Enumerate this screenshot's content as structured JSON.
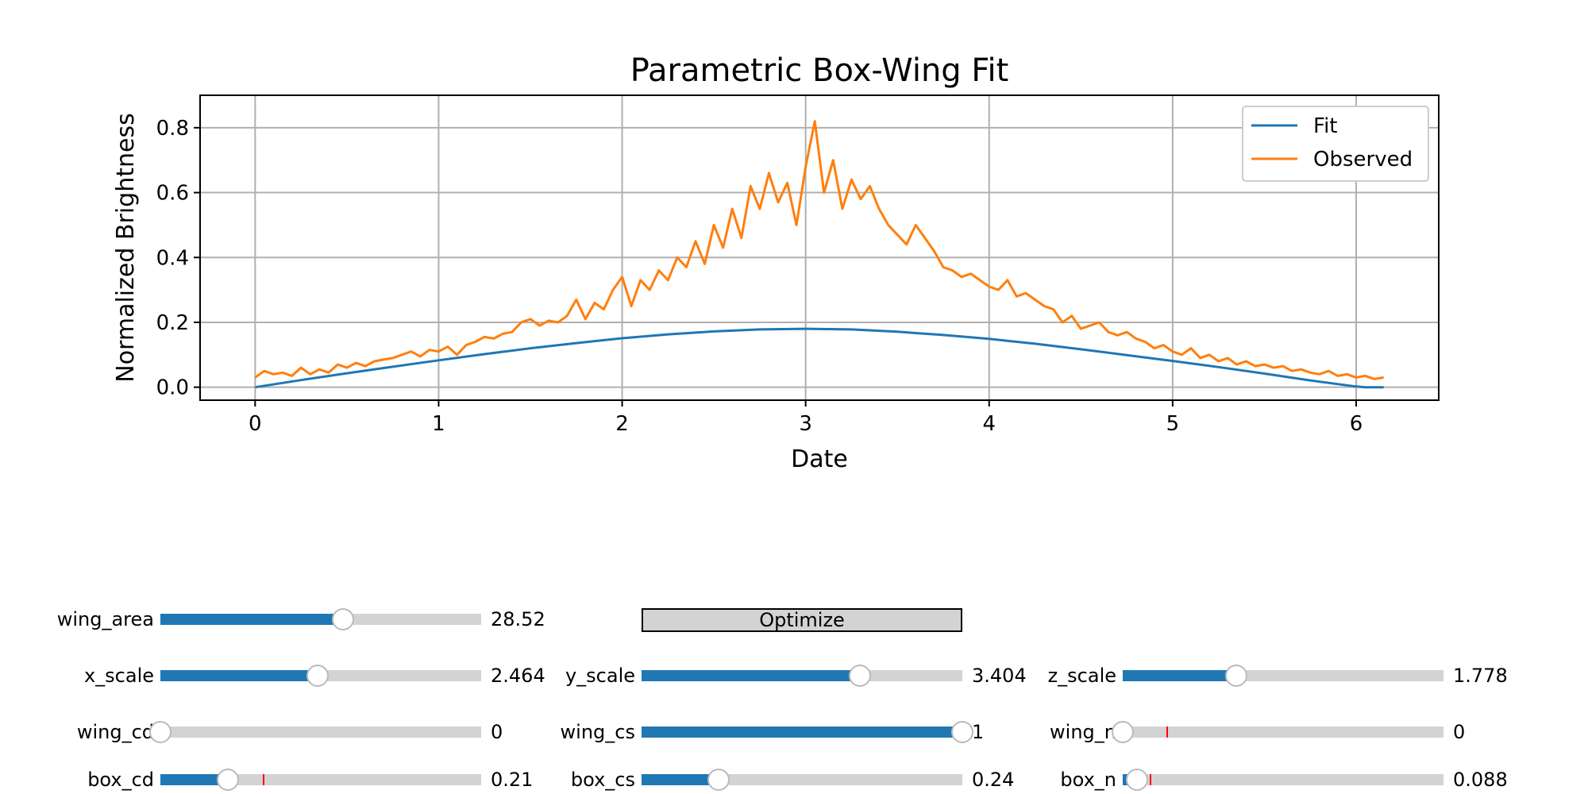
{
  "chart_data": {
    "type": "line",
    "title": "Parametric Box-Wing Fit",
    "xlabel": "Date",
    "ylabel": "Normalized Brightness",
    "xlim": [
      -0.3,
      6.45
    ],
    "ylim": [
      -0.04,
      0.9
    ],
    "xticks": [
      "0",
      "1",
      "2",
      "3",
      "4",
      "5",
      "6"
    ],
    "yticks": [
      "0.0",
      "0.2",
      "0.4",
      "0.6",
      "0.8"
    ],
    "grid": true,
    "legend_position": "top-right",
    "series": [
      {
        "name": "Fit",
        "color": "#1f77b4",
        "x": [
          0,
          0.25,
          0.5,
          0.75,
          1.0,
          1.25,
          1.5,
          1.75,
          2.0,
          2.25,
          2.5,
          2.75,
          3.0,
          3.25,
          3.5,
          3.75,
          4.0,
          4.25,
          4.5,
          4.75,
          5.0,
          5.25,
          5.5,
          5.75,
          6.0,
          6.05,
          6.15
        ],
        "y": [
          0.0,
          0.022,
          0.043,
          0.063,
          0.083,
          0.102,
          0.12,
          0.136,
          0.151,
          0.163,
          0.172,
          0.178,
          0.18,
          0.178,
          0.171,
          0.161,
          0.149,
          0.134,
          0.117,
          0.099,
          0.081,
          0.062,
          0.042,
          0.021,
          0.002,
          0.0,
          0.0
        ]
      },
      {
        "name": "Observed",
        "color": "#ff7f0e",
        "x": [
          0,
          0.05,
          0.1,
          0.15,
          0.2,
          0.25,
          0.3,
          0.35,
          0.4,
          0.45,
          0.5,
          0.55,
          0.6,
          0.65,
          0.7,
          0.75,
          0.8,
          0.85,
          0.9,
          0.95,
          1.0,
          1.05,
          1.1,
          1.15,
          1.2,
          1.25,
          1.3,
          1.35,
          1.4,
          1.45,
          1.5,
          1.55,
          1.6,
          1.65,
          1.7,
          1.75,
          1.8,
          1.85,
          1.9,
          1.95,
          2.0,
          2.05,
          2.1,
          2.15,
          2.2,
          2.25,
          2.3,
          2.35,
          2.4,
          2.45,
          2.5,
          2.55,
          2.6,
          2.65,
          2.7,
          2.75,
          2.8,
          2.85,
          2.9,
          2.95,
          3.0,
          3.05,
          3.1,
          3.15,
          3.2,
          3.25,
          3.3,
          3.35,
          3.4,
          3.45,
          3.5,
          3.55,
          3.6,
          3.65,
          3.7,
          3.75,
          3.8,
          3.85,
          3.9,
          3.95,
          4.0,
          4.05,
          4.1,
          4.15,
          4.2,
          4.25,
          4.3,
          4.35,
          4.4,
          4.45,
          4.5,
          4.55,
          4.6,
          4.65,
          4.7,
          4.75,
          4.8,
          4.85,
          4.9,
          4.95,
          5.0,
          5.05,
          5.1,
          5.15,
          5.2,
          5.25,
          5.3,
          5.35,
          5.4,
          5.45,
          5.5,
          5.55,
          5.6,
          5.65,
          5.7,
          5.75,
          5.8,
          5.85,
          5.9,
          5.95,
          6.0,
          6.05,
          6.1,
          6.15
        ],
        "y": [
          0.03,
          0.05,
          0.04,
          0.045,
          0.035,
          0.06,
          0.04,
          0.055,
          0.045,
          0.07,
          0.06,
          0.075,
          0.065,
          0.08,
          0.085,
          0.09,
          0.1,
          0.11,
          0.095,
          0.115,
          0.11,
          0.125,
          0.1,
          0.13,
          0.14,
          0.155,
          0.15,
          0.165,
          0.17,
          0.2,
          0.21,
          0.19,
          0.205,
          0.2,
          0.22,
          0.27,
          0.21,
          0.26,
          0.24,
          0.3,
          0.34,
          0.25,
          0.33,
          0.3,
          0.36,
          0.33,
          0.4,
          0.37,
          0.45,
          0.38,
          0.5,
          0.43,
          0.55,
          0.46,
          0.62,
          0.55,
          0.66,
          0.57,
          0.63,
          0.5,
          0.68,
          0.82,
          0.6,
          0.7,
          0.55,
          0.64,
          0.58,
          0.62,
          0.55,
          0.5,
          0.47,
          0.44,
          0.5,
          0.46,
          0.42,
          0.37,
          0.36,
          0.34,
          0.35,
          0.33,
          0.31,
          0.3,
          0.33,
          0.28,
          0.29,
          0.27,
          0.25,
          0.24,
          0.2,
          0.22,
          0.18,
          0.19,
          0.2,
          0.17,
          0.16,
          0.17,
          0.15,
          0.14,
          0.12,
          0.13,
          0.11,
          0.1,
          0.12,
          0.09,
          0.1,
          0.08,
          0.09,
          0.07,
          0.08,
          0.065,
          0.07,
          0.06,
          0.065,
          0.05,
          0.055,
          0.045,
          0.04,
          0.05,
          0.035,
          0.04,
          0.03,
          0.035,
          0.025,
          0.03
        ]
      }
    ]
  },
  "controls": {
    "optimize_label": "Optimize",
    "sliders": [
      {
        "id": "wing-area",
        "label": "wing_area",
        "value_text": "28.52",
        "fraction": 0.57,
        "col": 0,
        "row": 0
      },
      {
        "id": "x-scale",
        "label": "x_scale",
        "value_text": "2.464",
        "fraction": 0.49,
        "col": 0,
        "row": 1
      },
      {
        "id": "y-scale",
        "label": "y_scale",
        "value_text": "3.404",
        "fraction": 0.68,
        "col": 1,
        "row": 1
      },
      {
        "id": "z-scale",
        "label": "z_scale",
        "value_text": "1.778",
        "fraction": 0.355,
        "col": 2,
        "row": 1
      },
      {
        "id": "wing-cd",
        "label": "wing_cd",
        "value_text": "0",
        "fraction": 0.0,
        "col": 0,
        "row": 2
      },
      {
        "id": "wing-cs",
        "label": "wing_cs",
        "value_text": "1",
        "fraction": 1.0,
        "col": 1,
        "row": 2
      },
      {
        "id": "wing-n",
        "label": "wing_n",
        "value_text": "0",
        "fraction": 0.0,
        "init_fraction": 0.135,
        "col": 2,
        "row": 2
      },
      {
        "id": "box-cd",
        "label": "box_cd",
        "value_text": "0.21",
        "fraction": 0.21,
        "init_fraction": 0.32,
        "col": 0,
        "row": 3
      },
      {
        "id": "box-cs",
        "label": "box_cs",
        "value_text": "0.24",
        "fraction": 0.24,
        "col": 1,
        "row": 3
      },
      {
        "id": "box-n",
        "label": "box_n",
        "value_text": "0.088",
        "fraction": 0.045,
        "init_fraction": 0.085,
        "col": 2,
        "row": 3
      }
    ]
  }
}
